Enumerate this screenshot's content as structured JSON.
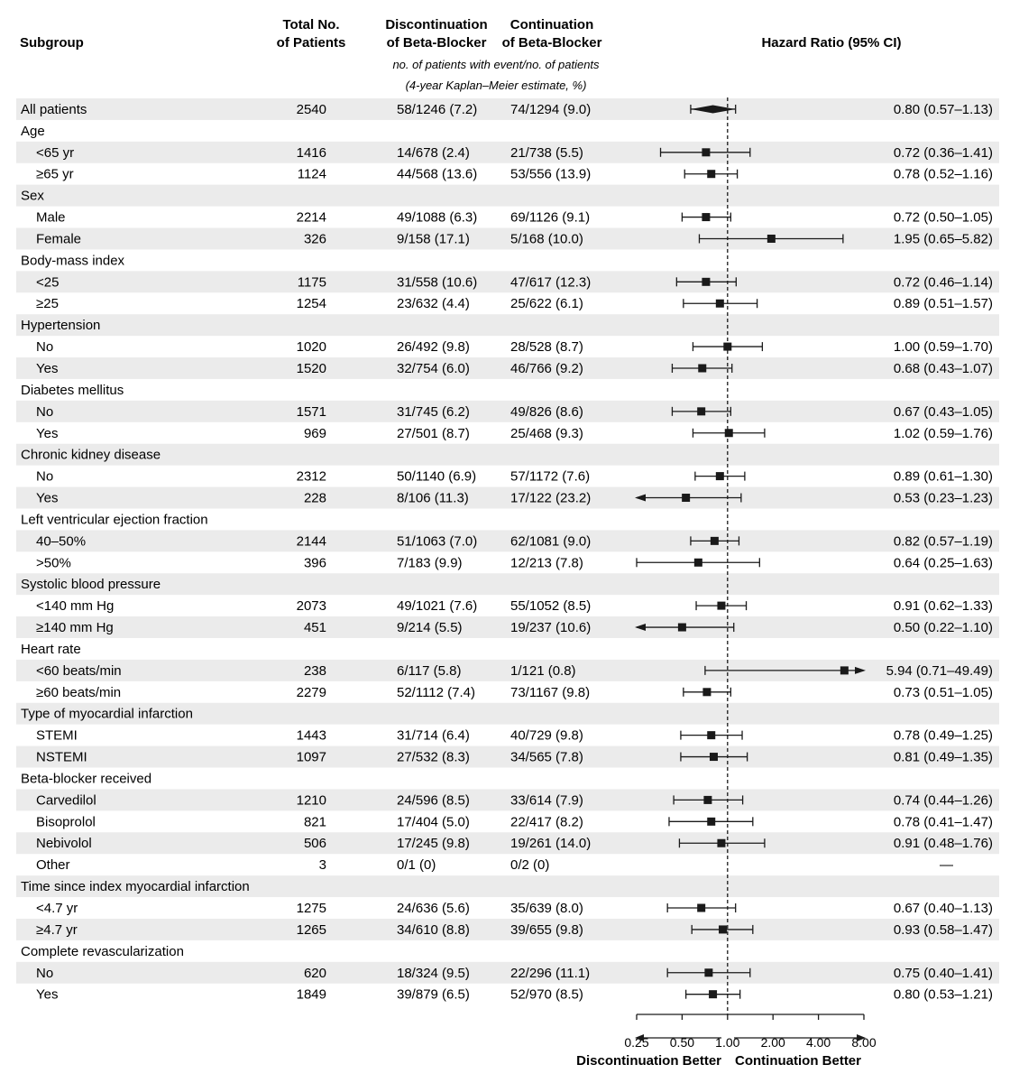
{
  "headers": {
    "subgroup": "Subgroup",
    "total_line1": "Total No.",
    "total_line2": "of Patients",
    "disc_line1": "Discontinuation",
    "disc_line2": "of Beta-Blocker",
    "cont_line1": "Continuation",
    "cont_line2": "of Beta-Blocker",
    "hr": "Hazard Ratio (95% CI)",
    "note_line1": "no. of patients with event/no. of patients",
    "note_line2": "(4-year Kaplan–Meier estimate, %)"
  },
  "colors": {
    "stripe": "#ebebeb",
    "mark": "#1a1a1a"
  },
  "axis": {
    "scale": "log2",
    "ticks": [
      "0.25",
      "0.50",
      "1.00",
      "2.00",
      "4.00",
      "8.00"
    ],
    "xlim": [
      0.25,
      8.0
    ],
    "reference_line": 1.0,
    "left_label": "Discontinuation Better",
    "right_label": "Continuation Better"
  },
  "chart_data": {
    "type": "forest",
    "rows": [
      {
        "label": "All patients",
        "indent": false,
        "total": "2540",
        "disc": "58/1246 (7.2)",
        "cont": "74/1294 (9.0)",
        "hr_text": "0.80 (0.57–1.13)",
        "hr": 0.8,
        "lo": 0.57,
        "hi": 1.13,
        "marker": "diamond"
      },
      {
        "label": "Age",
        "header": true
      },
      {
        "label": "<65 yr",
        "indent": true,
        "total": "1416",
        "disc": "14/678 (2.4)",
        "cont": "21/738 (5.5)",
        "hr_text": "0.72 (0.36–1.41)",
        "hr": 0.72,
        "lo": 0.36,
        "hi": 1.41
      },
      {
        "label": "≥65 yr",
        "indent": true,
        "total": "1124",
        "disc": "44/568 (13.6)",
        "cont": "53/556 (13.9)",
        "hr_text": "0.78 (0.52–1.16)",
        "hr": 0.78,
        "lo": 0.52,
        "hi": 1.16
      },
      {
        "label": "Sex",
        "header": true
      },
      {
        "label": "Male",
        "indent": true,
        "total": "2214",
        "disc": "49/1088 (6.3)",
        "cont": "69/1126 (9.1)",
        "hr_text": "0.72 (0.50–1.05)",
        "hr": 0.72,
        "lo": 0.5,
        "hi": 1.05
      },
      {
        "label": "Female",
        "indent": true,
        "total": "326",
        "disc": "9/158 (17.1)",
        "cont": "5/168 (10.0)",
        "hr_text": "1.95 (0.65–5.82)",
        "hr": 1.95,
        "lo": 0.65,
        "hi": 5.82
      },
      {
        "label": "Body-mass index",
        "header": true
      },
      {
        "label": "<25",
        "indent": true,
        "total": "1175",
        "disc": "31/558 (10.6)",
        "cont": "47/617 (12.3)",
        "hr_text": "0.72 (0.46–1.14)",
        "hr": 0.72,
        "lo": 0.46,
        "hi": 1.14
      },
      {
        "label": "≥25",
        "indent": true,
        "total": "1254",
        "disc": "23/632 (4.4)",
        "cont": "25/622 (6.1)",
        "hr_text": "0.89 (0.51–1.57)",
        "hr": 0.89,
        "lo": 0.51,
        "hi": 1.57
      },
      {
        "label": "Hypertension",
        "header": true
      },
      {
        "label": "No",
        "indent": true,
        "total": "1020",
        "disc": "26/492 (9.8)",
        "cont": "28/528 (8.7)",
        "hr_text": "1.00 (0.59–1.70)",
        "hr": 1.0,
        "lo": 0.59,
        "hi": 1.7
      },
      {
        "label": "Yes",
        "indent": true,
        "total": "1520",
        "disc": "32/754 (6.0)",
        "cont": "46/766 (9.2)",
        "hr_text": "0.68 (0.43–1.07)",
        "hr": 0.68,
        "lo": 0.43,
        "hi": 1.07
      },
      {
        "label": "Diabetes mellitus",
        "header": true
      },
      {
        "label": "No",
        "indent": true,
        "total": "1571",
        "disc": "31/745 (6.2)",
        "cont": "49/826 (8.6)",
        "hr_text": "0.67 (0.43–1.05)",
        "hr": 0.67,
        "lo": 0.43,
        "hi": 1.05
      },
      {
        "label": "Yes",
        "indent": true,
        "total": "969",
        "disc": "27/501 (8.7)",
        "cont": "25/468 (9.3)",
        "hr_text": "1.02 (0.59–1.76)",
        "hr": 1.02,
        "lo": 0.59,
        "hi": 1.76
      },
      {
        "label": "Chronic kidney disease",
        "header": true
      },
      {
        "label": "No",
        "indent": true,
        "total": "2312",
        "disc": "50/1140 (6.9)",
        "cont": "57/1172 (7.6)",
        "hr_text": "0.89 (0.61–1.30)",
        "hr": 0.89,
        "lo": 0.61,
        "hi": 1.3
      },
      {
        "label": "Yes",
        "indent": true,
        "total": "228",
        "disc": "8/106 (11.3)",
        "cont": "17/122 (23.2)",
        "hr_text": "0.53 (0.23–1.23)",
        "hr": 0.53,
        "lo": 0.23,
        "hi": 1.23
      },
      {
        "label": "Left ventricular ejection fraction",
        "header": true
      },
      {
        "label": "40–50%",
        "indent": true,
        "total": "2144",
        "disc": "51/1063 (7.0)",
        "cont": "62/1081 (9.0)",
        "hr_text": "0.82 (0.57–1.19)",
        "hr": 0.82,
        "lo": 0.57,
        "hi": 1.19
      },
      {
        "label": ">50%",
        "indent": true,
        "total": "396",
        "disc": "7/183 (9.9)",
        "cont": "12/213 (7.8)",
        "hr_text": "0.64 (0.25–1.63)",
        "hr": 0.64,
        "lo": 0.25,
        "hi": 1.63
      },
      {
        "label": "Systolic blood pressure",
        "header": true
      },
      {
        "label": "<140 mm Hg",
        "indent": true,
        "total": "2073",
        "disc": "49/1021 (7.6)",
        "cont": "55/1052 (8.5)",
        "hr_text": "0.91 (0.62–1.33)",
        "hr": 0.91,
        "lo": 0.62,
        "hi": 1.33
      },
      {
        "label": "≥140 mm Hg",
        "indent": true,
        "total": "451",
        "disc": "9/214 (5.5)",
        "cont": "19/237 (10.6)",
        "hr_text": "0.50 (0.22–1.10)",
        "hr": 0.5,
        "lo": 0.22,
        "hi": 1.1
      },
      {
        "label": "Heart rate",
        "header": true
      },
      {
        "label": "<60 beats/min",
        "indent": true,
        "total": "238",
        "disc": "6/117 (5.8)",
        "cont": "1/121 (0.8)",
        "hr_text": "5.94 (0.71–49.49)",
        "hr": 5.94,
        "lo": 0.71,
        "hi": 49.49
      },
      {
        "label": "≥60 beats/min",
        "indent": true,
        "total": "2279",
        "disc": "52/1112 (7.4)",
        "cont": "73/1167 (9.8)",
        "hr_text": "0.73 (0.51–1.05)",
        "hr": 0.73,
        "lo": 0.51,
        "hi": 1.05
      },
      {
        "label": "Type of myocardial infarction",
        "header": true
      },
      {
        "label": "STEMI",
        "indent": true,
        "total": "1443",
        "disc": "31/714 (6.4)",
        "cont": "40/729 (9.8)",
        "hr_text": "0.78 (0.49–1.25)",
        "hr": 0.78,
        "lo": 0.49,
        "hi": 1.25
      },
      {
        "label": "NSTEMI",
        "indent": true,
        "total": "1097",
        "disc": "27/532 (8.3)",
        "cont": "34/565 (7.8)",
        "hr_text": "0.81 (0.49–1.35)",
        "hr": 0.81,
        "lo": 0.49,
        "hi": 1.35
      },
      {
        "label": "Beta-blocker received",
        "header": true
      },
      {
        "label": "Carvedilol",
        "indent": true,
        "total": "1210",
        "disc": "24/596 (8.5)",
        "cont": "33/614 (7.9)",
        "hr_text": "0.74 (0.44–1.26)",
        "hr": 0.74,
        "lo": 0.44,
        "hi": 1.26
      },
      {
        "label": "Bisoprolol",
        "indent": true,
        "total": "821",
        "disc": "17/404 (5.0)",
        "cont": "22/417 (8.2)",
        "hr_text": "0.78 (0.41–1.47)",
        "hr": 0.78,
        "lo": 0.41,
        "hi": 1.47
      },
      {
        "label": "Nebivolol",
        "indent": true,
        "total": "506",
        "disc": "17/245 (9.8)",
        "cont": "19/261 (14.0)",
        "hr_text": "0.91 (0.48–1.76)",
        "hr": 0.91,
        "lo": 0.48,
        "hi": 1.76
      },
      {
        "label": "Other",
        "indent": true,
        "total": "3",
        "disc": "0/1 (0)",
        "cont": "0/2 (0)",
        "hr_text": "—",
        "hr": null,
        "lo": null,
        "hi": null
      },
      {
        "label": "Time since index myocardial infarction",
        "header": true
      },
      {
        "label": "<4.7 yr",
        "indent": true,
        "total": "1275",
        "disc": "24/636 (5.6)",
        "cont": "35/639 (8.0)",
        "hr_text": "0.67 (0.40–1.13)",
        "hr": 0.67,
        "lo": 0.4,
        "hi": 1.13
      },
      {
        "label": "≥4.7 yr",
        "indent": true,
        "total": "1265",
        "disc": "34/610 (8.8)",
        "cont": "39/655 (9.8)",
        "hr_text": "0.93 (0.58–1.47)",
        "hr": 0.93,
        "lo": 0.58,
        "hi": 1.47
      },
      {
        "label": "Complete revascularization",
        "header": true
      },
      {
        "label": "No",
        "indent": true,
        "total": "620",
        "disc": "18/324 (9.5)",
        "cont": "22/296 (11.1)",
        "hr_text": "0.75 (0.40–1.41)",
        "hr": 0.75,
        "lo": 0.4,
        "hi": 1.41
      },
      {
        "label": "Yes",
        "indent": true,
        "total": "1849",
        "disc": "39/879 (6.5)",
        "cont": "52/970 (8.5)",
        "hr_text": "0.80 (0.53–1.21)",
        "hr": 0.8,
        "lo": 0.53,
        "hi": 1.21
      }
    ]
  }
}
